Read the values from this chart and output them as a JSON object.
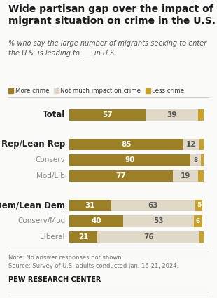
{
  "title": "Wide partisan gap over the impact of\nmigrant situation on crime in the U.S.",
  "subtitle": "% who say the large number of migrants seeking to enter\nthe U.S. is leading to ___ in U.S.",
  "legend": [
    "More crime",
    "Not much impact on crime",
    "Less crime"
  ],
  "colors": {
    "more_crime": "#9B8026",
    "not_much": "#E0D9C8",
    "less_crime": "#C9A227"
  },
  "bold_rows": [
    0,
    1,
    4
  ],
  "indent_rows": [
    2,
    3,
    5,
    6
  ],
  "data": [
    {
      "label": "Total",
      "more": 57,
      "not_much": 39,
      "less": 4
    },
    {
      "label": "Rep/Lean Rep",
      "more": 85,
      "not_much": 12,
      "less": 3
    },
    {
      "label": "Conserv",
      "more": 90,
      "not_much": 8,
      "less": 2
    },
    {
      "label": "Mod/Lib",
      "more": 77,
      "not_much": 19,
      "less": 4
    },
    {
      "label": "Dem/Lean Dem",
      "more": 31,
      "not_much": 63,
      "less": 5
    },
    {
      "label": "Conserv/Mod",
      "more": 40,
      "not_much": 53,
      "less": 6
    },
    {
      "label": "Liberal",
      "more": 21,
      "not_much": 76,
      "less": 3
    }
  ],
  "note": "Note: No answer responses not shown.",
  "source": "Source: Survey of U.S. adults conducted Jan. 16-21, 2024.",
  "pew": "PEW RESEARCH CENTER",
  "bg_color": "#FAFAF8"
}
